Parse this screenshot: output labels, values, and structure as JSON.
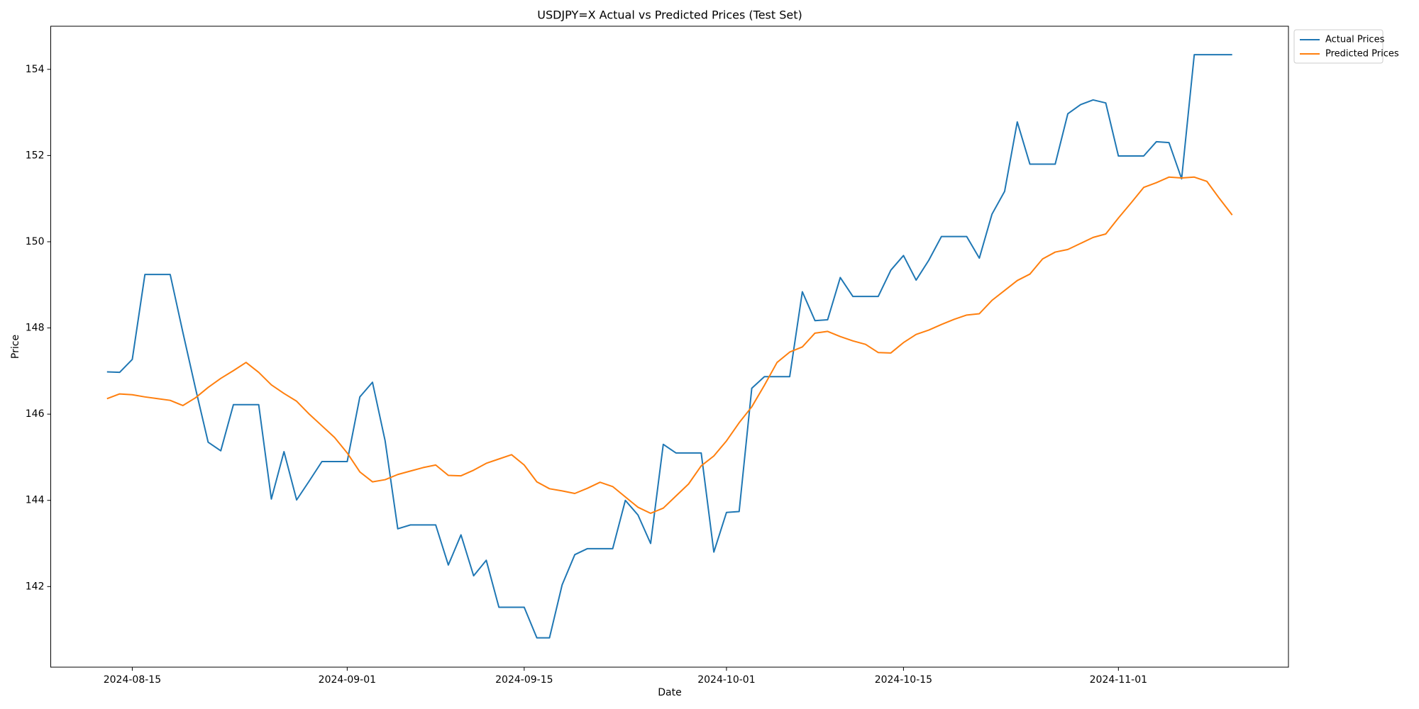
{
  "chart_data": {
    "type": "line",
    "title": "USDJPY=X Actual vs Predicted Prices (Test Set)",
    "x_label": "Date",
    "y_label": "Price",
    "x": [
      "2024-08-13",
      "2024-08-14",
      "2024-08-15",
      "2024-08-16",
      "2024-08-17",
      "2024-08-18",
      "2024-08-19",
      "2024-08-20",
      "2024-08-21",
      "2024-08-22",
      "2024-08-23",
      "2024-08-24",
      "2024-08-25",
      "2024-08-26",
      "2024-08-27",
      "2024-08-28",
      "2024-08-29",
      "2024-08-30",
      "2024-08-31",
      "2024-09-01",
      "2024-09-02",
      "2024-09-03",
      "2024-09-04",
      "2024-09-05",
      "2024-09-06",
      "2024-09-07",
      "2024-09-08",
      "2024-09-09",
      "2024-09-10",
      "2024-09-11",
      "2024-09-12",
      "2024-09-13",
      "2024-09-14",
      "2024-09-15",
      "2024-09-16",
      "2024-09-17",
      "2024-09-18",
      "2024-09-19",
      "2024-09-20",
      "2024-09-21",
      "2024-09-22",
      "2024-09-23",
      "2024-09-24",
      "2024-09-25",
      "2024-09-26",
      "2024-09-27",
      "2024-09-28",
      "2024-09-29",
      "2024-09-30",
      "2024-10-01",
      "2024-10-02",
      "2024-10-03",
      "2024-10-04",
      "2024-10-05",
      "2024-10-06",
      "2024-10-07",
      "2024-10-08",
      "2024-10-09",
      "2024-10-10",
      "2024-10-11",
      "2024-10-12",
      "2024-10-13",
      "2024-10-14",
      "2024-10-15",
      "2024-10-16",
      "2024-10-17",
      "2024-10-18",
      "2024-10-19",
      "2024-10-20",
      "2024-10-21",
      "2024-10-22",
      "2024-10-23",
      "2024-10-24",
      "2024-10-25",
      "2024-10-26",
      "2024-10-27",
      "2024-10-28",
      "2024-10-29",
      "2024-10-30",
      "2024-10-31",
      "2024-11-01",
      "2024-11-02",
      "2024-11-03",
      "2024-11-04",
      "2024-11-05",
      "2024-11-06",
      "2024-11-07",
      "2024-11-08",
      "2024-11-09",
      "2024-11-10"
    ],
    "series": [
      {
        "name": "Actual Prices",
        "color": "#1f77b4",
        "values": [
          146.98,
          146.97,
          147.27,
          149.24,
          149.24,
          149.24,
          147.9,
          146.6,
          145.35,
          145.15,
          146.22,
          146.22,
          146.22,
          144.03,
          145.13,
          144.01,
          144.45,
          144.9,
          144.9,
          144.9,
          146.4,
          146.74,
          145.38,
          143.34,
          143.43,
          143.43,
          143.43,
          142.5,
          143.2,
          142.25,
          142.61,
          141.52,
          141.52,
          141.52,
          140.81,
          140.81,
          142.04,
          142.74,
          142.88,
          142.88,
          142.88,
          144.0,
          143.66,
          143.0,
          145.3,
          145.1,
          145.1,
          145.1,
          142.8,
          143.72,
          143.74,
          146.6,
          146.87,
          146.87,
          146.87,
          148.84,
          148.17,
          148.19,
          149.17,
          148.73,
          148.73,
          148.73,
          149.34,
          149.68,
          149.11,
          149.57,
          150.12,
          150.12,
          150.12,
          149.62,
          150.64,
          151.17,
          152.78,
          151.8,
          151.8,
          151.8,
          152.97,
          153.18,
          153.29,
          153.22,
          151.99,
          151.99,
          151.99,
          152.32,
          152.3,
          151.46,
          154.34,
          154.34,
          154.34,
          154.34
        ]
      },
      {
        "name": "Predicted Prices",
        "color": "#ff7f0e",
        "values": [
          146.36,
          146.47,
          146.45,
          146.4,
          146.36,
          146.32,
          146.2,
          146.38,
          146.62,
          146.83,
          147.01,
          147.2,
          146.97,
          146.68,
          146.48,
          146.3,
          146.0,
          145.73,
          145.46,
          145.1,
          144.66,
          144.43,
          144.48,
          144.6,
          144.68,
          144.76,
          144.82,
          144.58,
          144.57,
          144.7,
          144.86,
          144.96,
          145.06,
          144.82,
          144.43,
          144.27,
          144.22,
          144.16,
          144.28,
          144.42,
          144.32,
          144.08,
          143.84,
          143.7,
          143.82,
          144.1,
          144.38,
          144.8,
          145.03,
          145.38,
          145.8,
          146.17,
          146.67,
          147.2,
          147.44,
          147.56,
          147.88,
          147.92,
          147.8,
          147.7,
          147.62,
          147.43,
          147.42,
          147.66,
          147.85,
          147.95,
          148.08,
          148.2,
          148.3,
          148.33,
          148.64,
          148.87,
          149.1,
          149.25,
          149.6,
          149.76,
          149.82,
          149.96,
          150.1,
          150.18,
          150.55,
          150.9,
          151.26,
          151.37,
          151.5,
          151.48,
          151.5,
          151.4,
          151.0,
          150.62
        ]
      }
    ],
    "xlim": [
      "2024-08-08T13:12:00Z",
      "2024-11-14T10:48:00Z"
    ],
    "xticks": [
      "2024-08-15",
      "2024-09-01",
      "2024-09-15",
      "2024-10-01",
      "2024-10-15",
      "2024-11-01"
    ],
    "ylim": [
      140.13,
      155.0
    ],
    "yticks": [
      142,
      144,
      146,
      148,
      150,
      152,
      154
    ],
    "grid": false,
    "legend": "upper left outside"
  }
}
